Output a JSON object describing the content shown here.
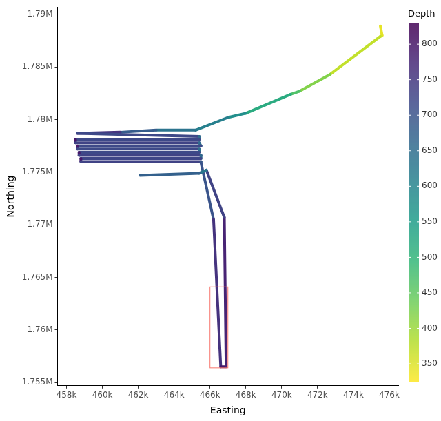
{
  "chart_data": {
    "type": "line",
    "xlabel": "Easting",
    "ylabel": "Northing",
    "grid": false,
    "xlim": [
      457500,
      476500
    ],
    "ylim": [
      1754700,
      1790700
    ],
    "xticks": [
      {
        "value": 458000,
        "label": "458k"
      },
      {
        "value": 460000,
        "label": "460k"
      },
      {
        "value": 462000,
        "label": "462k"
      },
      {
        "value": 464000,
        "label": "464k"
      },
      {
        "value": 466000,
        "label": "466k"
      },
      {
        "value": 468000,
        "label": "468k"
      },
      {
        "value": 470000,
        "label": "470k"
      },
      {
        "value": 472000,
        "label": "472k"
      },
      {
        "value": 474000,
        "label": "474k"
      },
      {
        "value": 476000,
        "label": "476k"
      }
    ],
    "yticks": [
      {
        "value": 1755000,
        "label": "1.755M"
      },
      {
        "value": 1760000,
        "label": "1.76M"
      },
      {
        "value": 1765000,
        "label": "1.765M"
      },
      {
        "value": 1770000,
        "label": "1.77M"
      },
      {
        "value": 1775000,
        "label": "1.775M"
      },
      {
        "value": 1780000,
        "label": "1.78M"
      },
      {
        "value": 1785000,
        "label": "1.785M"
      },
      {
        "value": 1790000,
        "label": "1.79M"
      }
    ],
    "x": [
      475500,
      475600,
      475500,
      472700,
      471000,
      470500,
      468000,
      467000,
      465200,
      463000,
      461000,
      458600,
      465400,
      465400,
      458500,
      458500,
      465400,
      465500,
      458600,
      458600,
      465400,
      465400,
      458700,
      458700,
      465500,
      465500,
      458800,
      458800,
      465500,
      465500,
      466200,
      466600,
      466900,
      466800,
      465800,
      465400,
      462100
    ],
    "y": [
      1788900,
      1788000,
      1787900,
      1784300,
      1782700,
      1782400,
      1780600,
      1780200,
      1779000,
      1779000,
      1778800,
      1778700,
      1778400,
      1778100,
      1778100,
      1777800,
      1777800,
      1777500,
      1777500,
      1777200,
      1777200,
      1776900,
      1776900,
      1776600,
      1776600,
      1776300,
      1776300,
      1776000,
      1776000,
      1775900,
      1770500,
      1756500,
      1756500,
      1770700,
      1775200,
      1774900,
      1774700
    ],
    "depth": [
      340,
      345,
      350,
      390,
      450,
      480,
      560,
      600,
      620,
      650,
      720,
      790,
      650,
      640,
      800,
      800,
      660,
      650,
      790,
      800,
      640,
      650,
      790,
      800,
      660,
      650,
      800,
      790,
      670,
      680,
      720,
      790,
      800,
      760,
      700,
      560,
      790
    ],
    "colorbar": {
      "title": "Depth",
      "range": [
        325,
        830
      ],
      "ticks": [
        350,
        400,
        450,
        500,
        550,
        600,
        650,
        700,
        750,
        800
      ]
    },
    "highlight_box": {
      "x": [
        466000,
        467000
      ],
      "y": [
        1756400,
        1764100
      ],
      "color": "#f8766d"
    }
  }
}
